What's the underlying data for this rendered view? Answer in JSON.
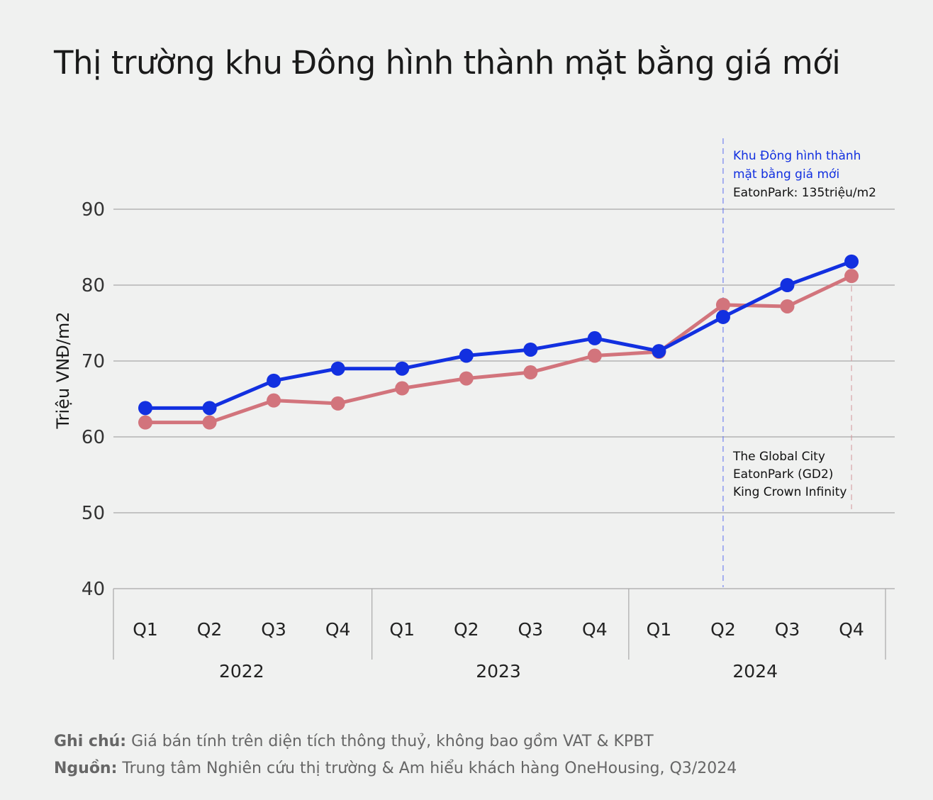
{
  "title": "Thị trường khu Đông hình thành mặt bằng giá mới",
  "chart_data": {
    "type": "line",
    "title": "Thị trường khu Đông hình thành mặt bằng giá mới",
    "ylabel": "Triệu VNĐ/m2",
    "xlabel": "",
    "ylim": [
      40,
      90
    ],
    "yticks": [
      40,
      50,
      60,
      70,
      80,
      90
    ],
    "grid": true,
    "categories": [
      "Q1",
      "Q2",
      "Q3",
      "Q4",
      "Q1",
      "Q2",
      "Q3",
      "Q4",
      "Q1",
      "Q2",
      "Q3",
      "Q4"
    ],
    "groups": [
      {
        "label": "2022",
        "count": 4
      },
      {
        "label": "2023",
        "count": 4
      },
      {
        "label": "2024",
        "count": 4
      }
    ],
    "series": [
      {
        "color": "#1230e0",
        "values": [
          63.8,
          63.8,
          67.4,
          69.0,
          69.0,
          70.7,
          71.5,
          73.0,
          71.3,
          75.8,
          80.0,
          83.1
        ]
      },
      {
        "color": "#d2747c",
        "values": [
          61.9,
          61.9,
          64.8,
          64.4,
          66.4,
          67.7,
          68.5,
          70.7,
          71.2,
          77.4,
          77.2,
          81.2
        ]
      }
    ],
    "annotations": {
      "top": {
        "lines_blue": [
          "Khu Đông hình thành",
          "mặt bằng giá mới"
        ],
        "line_black": "EatonPark: 135triệu/m2",
        "color": "#1230e0",
        "at_category_index": 9
      },
      "bottom": {
        "lines": [
          "The Global City",
          "EatonPark (GD2)",
          "King Crown Infinity"
        ]
      }
    }
  },
  "footnotes": {
    "note_label": "Ghi chú:",
    "note_text": " Giá bán tính trên diện tích thông thuỷ, không bao gồm VAT & KPBT",
    "source_label": "Nguồn:",
    "source_text": " Trung tâm Nghiên cứu thị trường & Am hiểu khách hàng OneHousing, Q3/2024"
  }
}
